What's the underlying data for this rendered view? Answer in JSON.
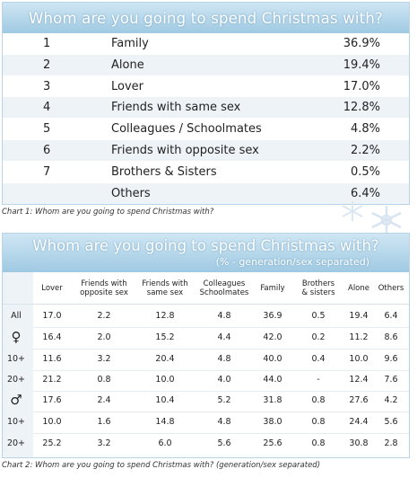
{
  "chart1": {
    "title": "Whom are you going to spend Christmas with?",
    "caption": "Chart 1: Whom are you going to spend Christmas with?",
    "rows": [
      {
        "rank": "1",
        "label": "Family",
        "pct": "36.9%"
      },
      {
        "rank": "2",
        "label": "Alone",
        "pct": "19.4%"
      },
      {
        "rank": "3",
        "label": "Lover",
        "pct": "17.0%"
      },
      {
        "rank": "4",
        "label": "Friends with same sex",
        "pct": "12.8%"
      },
      {
        "rank": "5",
        "label": "Colleagues / Schoolmates",
        "pct": "4.8%"
      },
      {
        "rank": "6",
        "label": "Friends with opposite sex",
        "pct": "2.2%"
      },
      {
        "rank": "7",
        "label": "Brothers & Sisters",
        "pct": "0.5%"
      },
      {
        "rank": "",
        "label": "Others",
        "pct": "6.4%"
      }
    ]
  },
  "chart2": {
    "title": "Whom are you going to spend Christmas with?",
    "subtitle": "(% - generation/sex separated)",
    "caption": "Chart 2: Whom are you going to spend Christmas with? (generation/sex separated)",
    "columns": [
      [
        "Lover"
      ],
      [
        "Friends with",
        "opposite sex"
      ],
      [
        "Friends with",
        "same sex"
      ],
      [
        "Colleagues",
        "Schoolmates"
      ],
      [
        "Family"
      ],
      [
        "Brothers",
        "& sisters"
      ],
      [
        "Alone"
      ],
      [
        "Others"
      ]
    ],
    "rows": [
      {
        "label": "All",
        "values": [
          "17.0",
          "2.2",
          "12.8",
          "4.8",
          "36.9",
          "0.5",
          "19.4",
          "6.4"
        ]
      },
      {
        "label": "♀",
        "values": [
          "16.4",
          "2.0",
          "15.2",
          "4.4",
          "42.0",
          "0.2",
          "11.2",
          "8.6"
        ]
      },
      {
        "label": "10+",
        "values": [
          "11.6",
          "3.2",
          "20.4",
          "4.8",
          "40.0",
          "0.4",
          "10.0",
          "9.6"
        ]
      },
      {
        "label": "20+",
        "values": [
          "21.2",
          "0.8",
          "10.0",
          "4.0",
          "44.0",
          "-",
          "12.4",
          "7.6"
        ]
      },
      {
        "label": "♂",
        "values": [
          "17.6",
          "2.4",
          "10.4",
          "5.2",
          "31.8",
          "0.8",
          "27.6",
          "4.2"
        ]
      },
      {
        "label": "10+",
        "values": [
          "10.0",
          "1.6",
          "14.8",
          "4.8",
          "38.0",
          "0.8",
          "24.4",
          "5.6"
        ]
      },
      {
        "label": "20+",
        "values": [
          "25.2",
          "3.2",
          "6.0",
          "5.6",
          "25.6",
          "0.8",
          "30.8",
          "2.8"
        ]
      }
    ]
  },
  "chart_data": [
    {
      "type": "table",
      "title": "Whom are you going to spend Christmas with?",
      "categories": [
        "Family",
        "Alone",
        "Lover",
        "Friends with same sex",
        "Colleagues / Schoolmates",
        "Friends with opposite sex",
        "Brothers & Sisters",
        "Others"
      ],
      "values": [
        36.9,
        19.4,
        17.0,
        12.8,
        4.8,
        2.2,
        0.5,
        6.4
      ]
    },
    {
      "type": "table",
      "title": "Whom are you going to spend Christmas with?",
      "subtitle": "(% - generation/sex separated)",
      "categories": [
        "Lover",
        "Friends with opposite sex",
        "Friends with same sex",
        "Colleagues Schoolmates",
        "Family",
        "Brothers & sisters",
        "Alone",
        "Others"
      ],
      "series": [
        {
          "name": "All",
          "values": [
            17.0,
            2.2,
            12.8,
            4.8,
            36.9,
            0.5,
            19.4,
            6.4
          ]
        },
        {
          "name": "♀",
          "values": [
            16.4,
            2.0,
            15.2,
            4.4,
            42.0,
            0.2,
            11.2,
            8.6
          ]
        },
        {
          "name": "10+",
          "values": [
            11.6,
            3.2,
            20.4,
            4.8,
            40.0,
            0.4,
            10.0,
            9.6
          ]
        },
        {
          "name": "20+",
          "values": [
            21.2,
            0.8,
            10.0,
            4.0,
            44.0,
            null,
            12.4,
            7.6
          ]
        },
        {
          "name": "♂",
          "values": [
            17.6,
            2.4,
            10.4,
            5.2,
            31.8,
            0.8,
            27.6,
            4.2
          ]
        },
        {
          "name": "10+",
          "values": [
            10.0,
            1.6,
            14.8,
            4.8,
            38.0,
            0.8,
            24.4,
            5.6
          ]
        },
        {
          "name": "20+",
          "values": [
            25.2,
            3.2,
            6.0,
            5.6,
            25.6,
            0.8,
            30.8,
            2.8
          ]
        }
      ]
    }
  ]
}
